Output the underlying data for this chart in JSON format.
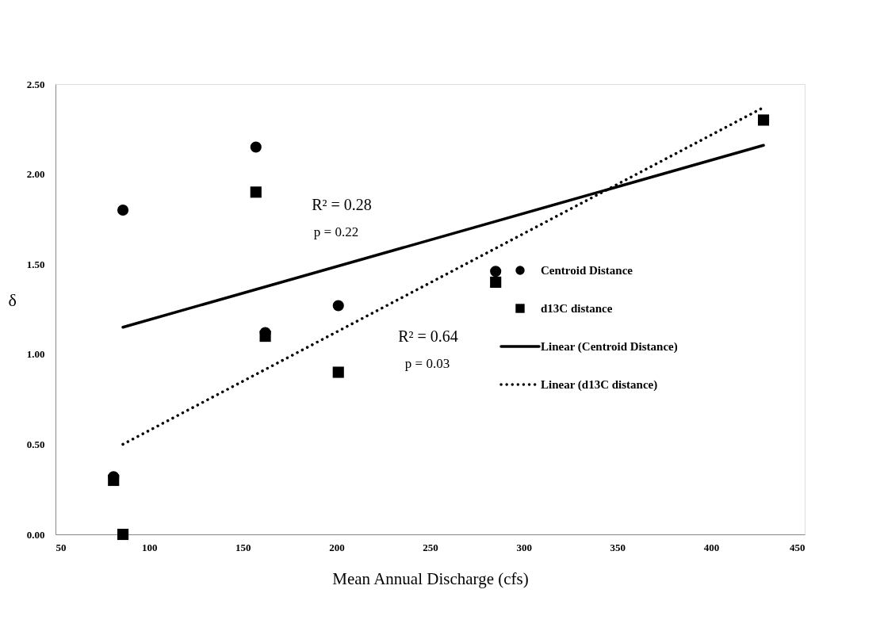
{
  "chart_data": {
    "type": "scatter",
    "xlabel": "Mean Annual Discharge (cfs)",
    "ylabel": "δ",
    "xlim": [
      50,
      450
    ],
    "xticks": [
      50,
      100,
      150,
      200,
      250,
      300,
      350,
      400,
      450
    ],
    "ylim": [
      0,
      2.5
    ],
    "yticks": [
      {
        "value": 0,
        "label": "0.00"
      },
      {
        "value": 0.5,
        "label": "0.50"
      },
      {
        "value": 1,
        "label": "1.00"
      },
      {
        "value": 1.5,
        "label": "1.50"
      },
      {
        "value": 2,
        "label": "2.00"
      },
      {
        "value": 2.5,
        "label": "2.50"
      }
    ],
    "grid": false,
    "legend": "right",
    "annotations": [
      "R² = 0.28",
      "p = 0.22",
      "R² = 0.64",
      "p = 0.03"
    ],
    "series": [
      {
        "name": "Centroid Distance",
        "type": "scatter",
        "marker": "circle",
        "color": "#000000",
        "x": [
          86,
          157,
          162,
          201,
          285,
          81
        ],
        "values": [
          1.8,
          2.15,
          1.12,
          1.27,
          1.46,
          0.32
        ]
      },
      {
        "name": "d13C distance",
        "type": "scatter",
        "marker": "square",
        "color": "#000000",
        "x": [
          86,
          157,
          162,
          201,
          285,
          81,
          428
        ],
        "values": [
          0.0,
          1.9,
          1.1,
          0.9,
          1.4,
          0.3,
          2.3
        ]
      },
      {
        "name": "Linear (Centroid Distance)",
        "type": "line",
        "line_style": "solid",
        "color": "#000000",
        "x": [
          86,
          428
        ],
        "values": [
          1.15,
          2.16
        ]
      },
      {
        "name": "Linear (d13C distance)",
        "type": "line",
        "line_style": "dotted",
        "color": "#000000",
        "x": [
          86,
          428
        ],
        "values": [
          0.5,
          2.37
        ]
      }
    ]
  }
}
